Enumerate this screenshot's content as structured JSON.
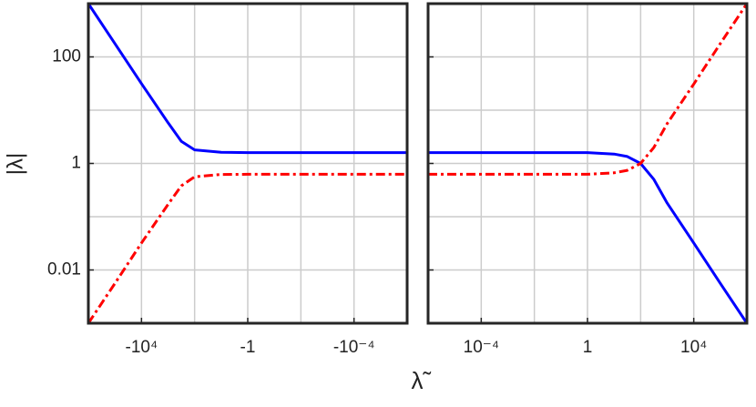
{
  "chart_data": [
    {
      "type": "line",
      "ylabel": "|λ|",
      "xlabel": "λ̃",
      "xscale": "log",
      "yscale": "log",
      "grid": true,
      "x": [
        -1000000,
        -100000,
        -10000,
        -1000,
        -316,
        -100,
        -10,
        -1,
        -0.1,
        -0.01,
        -0.0001,
        -1e-06
      ],
      "xlim": [
        -1000000,
        -1e-06
      ],
      "xticks": [
        {
          "value": -10000,
          "label": "-10⁴"
        },
        -1,
        {
          "value": -0.0001,
          "label": "-10⁻⁴"
        }
      ],
      "ylim": [
        0.001,
        1000
      ],
      "yticks": [
        0.01,
        1,
        100
      ],
      "series": [
        {
          "color": "#0000ff",
          "style": "solid",
          "values": [
            1000,
            178,
            31.6,
            5.8,
            2.6,
            1.8,
            1.62,
            1.6,
            1.6,
            1.6,
            1.6,
            1.6
          ]
        },
        {
          "color": "#ff0000",
          "style": "dashdot",
          "values": [
            0.001,
            0.0056,
            0.032,
            0.17,
            0.38,
            0.56,
            0.62,
            0.625,
            0.625,
            0.625,
            0.625,
            0.625
          ]
        }
      ]
    },
    {
      "type": "line",
      "xscale": "log",
      "yscale": "log",
      "grid": true,
      "x": [
        1e-06,
        0.0001,
        0.01,
        1,
        10,
        31.6,
        100,
        316,
        1000,
        10000,
        100000,
        1000000
      ],
      "xlim": [
        1e-06,
        1000000
      ],
      "xticks": [
        {
          "value": 0.0001,
          "label": "10⁻⁴"
        },
        1,
        {
          "value": 10000,
          "label": "10⁴"
        }
      ],
      "ylim": [
        0.001,
        1000
      ],
      "series": [
        {
          "color": "#0000ff",
          "style": "solid",
          "values": [
            1.6,
            1.6,
            1.6,
            1.6,
            1.5,
            1.35,
            1.0,
            0.5,
            0.18,
            0.032,
            0.0056,
            0.001
          ]
        },
        {
          "color": "#ff0000",
          "style": "dashdot",
          "values": [
            0.625,
            0.625,
            0.625,
            0.625,
            0.667,
            0.74,
            1.0,
            2,
            5.6,
            31,
            178,
            1000
          ]
        }
      ]
    }
  ]
}
